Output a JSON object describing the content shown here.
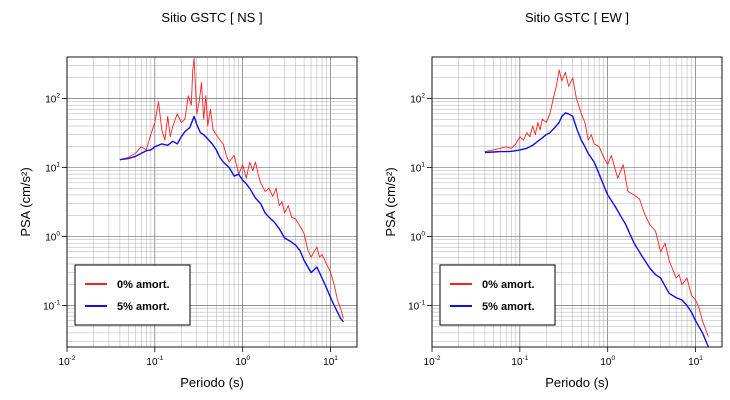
{
  "chart_data": [
    {
      "type": "line",
      "title": "Sitio GSTC [ NS ]",
      "xlabel": "Periodo (s)",
      "ylabel": "PSA (cm/s²)",
      "x_scale": "log",
      "y_scale": "log",
      "xlim": [
        0.01,
        20
      ],
      "ylim": [
        0.025,
        400
      ],
      "grid": true,
      "legend_position": "bottom-left",
      "x_ticks": [
        {
          "base": "10",
          "exp": "-2"
        },
        {
          "base": "10",
          "exp": "-1"
        },
        {
          "base": "10",
          "exp": "0"
        },
        {
          "base": "10",
          "exp": "1"
        }
      ],
      "y_ticks": [
        {
          "base": "10",
          "exp": "-1"
        },
        {
          "base": "10",
          "exp": "0"
        },
        {
          "base": "10",
          "exp": "1"
        },
        {
          "base": "10",
          "exp": "2"
        }
      ],
      "series": [
        {
          "name": "0% amort.",
          "color": "#ff2020",
          "x": [
            0.04,
            0.05,
            0.06,
            0.07,
            0.08,
            0.09,
            0.1,
            0.11,
            0.12,
            0.13,
            0.14,
            0.15,
            0.16,
            0.18,
            0.2,
            0.22,
            0.24,
            0.26,
            0.27,
            0.28,
            0.3,
            0.32,
            0.34,
            0.36,
            0.38,
            0.4,
            0.43,
            0.46,
            0.5,
            0.55,
            0.6,
            0.65,
            0.7,
            0.8,
            0.9,
            1.0,
            1.1,
            1.2,
            1.3,
            1.4,
            1.5,
            1.6,
            1.8,
            2.0,
            2.2,
            2.4,
            2.6,
            2.8,
            3.0,
            3.3,
            3.6,
            4.0,
            4.5,
            5.0,
            5.5,
            6.0,
            6.5,
            7.0,
            7.5,
            8.0,
            9.0,
            10.0,
            11.0,
            12.0,
            13.0,
            14.0
          ],
          "y": [
            13,
            14,
            16,
            20,
            18,
            30,
            45,
            90,
            35,
            25,
            55,
            28,
            40,
            60,
            45,
            50,
            110,
            80,
            250,
            380,
            60,
            90,
            170,
            50,
            110,
            40,
            70,
            35,
            30,
            25,
            22,
            15,
            12,
            15,
            8,
            11,
            7,
            12,
            9,
            12,
            8,
            6,
            4.5,
            5,
            3.8,
            5,
            2.8,
            3.2,
            2.2,
            2.8,
            1.9,
            1.8,
            1.4,
            1.1,
            0.65,
            0.5,
            0.6,
            0.7,
            0.5,
            0.55,
            0.4,
            0.3,
            0.2,
            0.12,
            0.09,
            0.065
          ]
        },
        {
          "name": "5% amort.",
          "color": "#1010e0",
          "x": [
            0.04,
            0.05,
            0.06,
            0.07,
            0.08,
            0.09,
            0.1,
            0.12,
            0.14,
            0.16,
            0.18,
            0.2,
            0.22,
            0.25,
            0.28,
            0.3,
            0.33,
            0.36,
            0.4,
            0.45,
            0.5,
            0.55,
            0.6,
            0.7,
            0.8,
            0.9,
            1.0,
            1.1,
            1.2,
            1.4,
            1.6,
            1.8,
            2.0,
            2.3,
            2.6,
            3.0,
            3.5,
            4.0,
            4.5,
            5.0,
            6.0,
            7.0,
            8.0,
            9.0,
            10.0,
            11.0,
            12.0,
            13.0,
            14.0
          ],
          "y": [
            13,
            13.5,
            14.5,
            16,
            17.5,
            18,
            20,
            22,
            21,
            24,
            22,
            28,
            33,
            38,
            55,
            42,
            32,
            30,
            26,
            22,
            18,
            14,
            12,
            10,
            7.5,
            8,
            6.5,
            5.8,
            5,
            3.6,
            3,
            2.2,
            1.9,
            1.6,
            1.3,
            0.95,
            0.85,
            0.75,
            0.62,
            0.45,
            0.3,
            0.36,
            0.25,
            0.18,
            0.13,
            0.1,
            0.08,
            0.065,
            0.058
          ]
        }
      ]
    },
    {
      "type": "line",
      "title": "Sitio GSTC [ EW ]",
      "xlabel": "Periodo (s)",
      "ylabel": "PSA (cm/s²)",
      "x_scale": "log",
      "y_scale": "log",
      "xlim": [
        0.01,
        20
      ],
      "ylim": [
        0.025,
        400
      ],
      "grid": true,
      "legend_position": "bottom-left",
      "x_ticks": [
        {
          "base": "10",
          "exp": "-2"
        },
        {
          "base": "10",
          "exp": "-1"
        },
        {
          "base": "10",
          "exp": "0"
        },
        {
          "base": "10",
          "exp": "1"
        }
      ],
      "y_ticks": [
        {
          "base": "10",
          "exp": "-1"
        },
        {
          "base": "10",
          "exp": "0"
        },
        {
          "base": "10",
          "exp": "1"
        },
        {
          "base": "10",
          "exp": "2"
        }
      ],
      "series": [
        {
          "name": "0% amort.",
          "color": "#ff2020",
          "x": [
            0.04,
            0.05,
            0.06,
            0.07,
            0.08,
            0.09,
            0.1,
            0.11,
            0.12,
            0.13,
            0.14,
            0.15,
            0.16,
            0.17,
            0.18,
            0.2,
            0.22,
            0.24,
            0.26,
            0.28,
            0.3,
            0.33,
            0.36,
            0.4,
            0.44,
            0.5,
            0.55,
            0.6,
            0.65,
            0.7,
            0.8,
            0.9,
            1.0,
            1.1,
            1.3,
            1.5,
            1.7,
            2.0,
            2.3,
            2.6,
            3.0,
            3.5,
            4.0,
            4.5,
            5.0,
            6.0,
            6.5,
            7.0,
            8.0,
            9.0,
            10.0,
            11.0,
            12.0,
            13.0,
            14.0
          ],
          "y": [
            17,
            18,
            19,
            20,
            19,
            22,
            28,
            25,
            32,
            28,
            40,
            30,
            45,
            35,
            50,
            45,
            60,
            100,
            150,
            260,
            180,
            240,
            150,
            200,
            100,
            60,
            45,
            25,
            30,
            22,
            20,
            14,
            11,
            15,
            7,
            11,
            4.5,
            4,
            3.5,
            2.2,
            1.5,
            1.2,
            0.6,
            0.8,
            0.45,
            0.25,
            0.28,
            0.2,
            0.25,
            0.14,
            0.12,
            0.09,
            0.06,
            0.045,
            0.035
          ]
        },
        {
          "name": "5% amort.",
          "color": "#1010e0",
          "x": [
            0.04,
            0.05,
            0.06,
            0.07,
            0.08,
            0.09,
            0.1,
            0.12,
            0.14,
            0.16,
            0.18,
            0.2,
            0.22,
            0.25,
            0.28,
            0.3,
            0.33,
            0.36,
            0.4,
            0.45,
            0.5,
            0.55,
            0.6,
            0.7,
            0.8,
            0.9,
            1.0,
            1.2,
            1.4,
            1.6,
            2.0,
            2.5,
            3.0,
            3.5,
            4.0,
            5.0,
            6.0,
            7.0,
            8.0,
            9.0,
            10.0,
            12.0,
            14.0
          ],
          "y": [
            16.5,
            16.8,
            17,
            17,
            17.2,
            17.5,
            18,
            19,
            21,
            24,
            27,
            30,
            32,
            38,
            45,
            55,
            62,
            60,
            55,
            35,
            25,
            20,
            16,
            12,
            8,
            5.5,
            4,
            2.8,
            2,
            1.5,
            0.8,
            0.5,
            0.35,
            0.28,
            0.25,
            0.15,
            0.13,
            0.12,
            0.1,
            0.08,
            0.06,
            0.04,
            0.025
          ]
        }
      ]
    }
  ]
}
